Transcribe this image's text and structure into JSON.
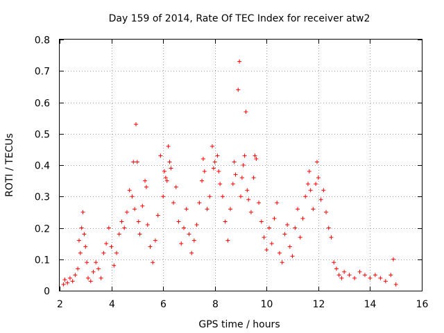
{
  "chart_data": {
    "type": "scatter",
    "title": "Day 159 of 2014, Rate Of TEC Index for receiver atw2",
    "xlabel": "GPS time / hours",
    "ylabel": "ROTI / TECUs",
    "xlim": [
      2,
      16
    ],
    "ylim": [
      0,
      0.8
    ],
    "xticks": [
      "2",
      "4",
      "6",
      "8",
      "10",
      "12",
      "14",
      "16"
    ],
    "yticks": [
      "0",
      "0.1",
      "0.2",
      "0.3",
      "0.4",
      "0.5",
      "0.6",
      "0.7",
      "0.8"
    ],
    "grid": true,
    "marker": "+",
    "color": "#ff0000",
    "series": [
      {
        "name": "ROTI",
        "points": [
          [
            2.15,
            0.02
          ],
          [
            2.2,
            0.035
          ],
          [
            2.3,
            0.025
          ],
          [
            2.4,
            0.04
          ],
          [
            2.5,
            0.03
          ],
          [
            2.6,
            0.05
          ],
          [
            2.7,
            0.07
          ],
          [
            2.75,
            0.16
          ],
          [
            2.8,
            0.12
          ],
          [
            2.85,
            0.2
          ],
          [
            2.9,
            0.25
          ],
          [
            2.95,
            0.18
          ],
          [
            3.0,
            0.14
          ],
          [
            3.05,
            0.09
          ],
          [
            3.1,
            0.04
          ],
          [
            3.2,
            0.03
          ],
          [
            3.3,
            0.06
          ],
          [
            3.4,
            0.09
          ],
          [
            3.5,
            0.07
          ],
          [
            3.6,
            0.04
          ],
          [
            3.7,
            0.12
          ],
          [
            3.8,
            0.15
          ],
          [
            3.9,
            0.2
          ],
          [
            4.0,
            0.14
          ],
          [
            4.1,
            0.08
          ],
          [
            4.2,
            0.12
          ],
          [
            4.3,
            0.18
          ],
          [
            4.4,
            0.22
          ],
          [
            4.5,
            0.2
          ],
          [
            4.6,
            0.25
          ],
          [
            4.7,
            0.32
          ],
          [
            4.8,
            0.3
          ],
          [
            4.85,
            0.41
          ],
          [
            4.9,
            0.26
          ],
          [
            4.95,
            0.53
          ],
          [
            5.0,
            0.41
          ],
          [
            5.05,
            0.22
          ],
          [
            5.1,
            0.18
          ],
          [
            5.2,
            0.27
          ],
          [
            5.3,
            0.35
          ],
          [
            5.35,
            0.33
          ],
          [
            5.4,
            0.21
          ],
          [
            5.5,
            0.14
          ],
          [
            5.6,
            0.09
          ],
          [
            5.7,
            0.16
          ],
          [
            5.8,
            0.24
          ],
          [
            5.9,
            0.43
          ],
          [
            6.0,
            0.3
          ],
          [
            6.05,
            0.38
          ],
          [
            6.1,
            0.36
          ],
          [
            6.15,
            0.35
          ],
          [
            6.2,
            0.46
          ],
          [
            6.25,
            0.41
          ],
          [
            6.3,
            0.39
          ],
          [
            6.4,
            0.28
          ],
          [
            6.5,
            0.33
          ],
          [
            6.6,
            0.22
          ],
          [
            6.7,
            0.15
          ],
          [
            6.8,
            0.2
          ],
          [
            6.9,
            0.26
          ],
          [
            7.0,
            0.18
          ],
          [
            7.1,
            0.12
          ],
          [
            7.2,
            0.16
          ],
          [
            7.3,
            0.21
          ],
          [
            7.4,
            0.28
          ],
          [
            7.5,
            0.35
          ],
          [
            7.55,
            0.42
          ],
          [
            7.6,
            0.38
          ],
          [
            7.7,
            0.26
          ],
          [
            7.8,
            0.3
          ],
          [
            7.9,
            0.46
          ],
          [
            7.95,
            0.39
          ],
          [
            8.0,
            0.41
          ],
          [
            8.1,
            0.43
          ],
          [
            8.15,
            0.38
          ],
          [
            8.2,
            0.34
          ],
          [
            8.3,
            0.3
          ],
          [
            8.4,
            0.22
          ],
          [
            8.5,
            0.16
          ],
          [
            8.6,
            0.26
          ],
          [
            8.7,
            0.34
          ],
          [
            8.75,
            0.41
          ],
          [
            8.8,
            0.37
          ],
          [
            8.9,
            0.64
          ],
          [
            8.95,
            0.73
          ],
          [
            9.0,
            0.3
          ],
          [
            9.05,
            0.36
          ],
          [
            9.1,
            0.4
          ],
          [
            9.15,
            0.43
          ],
          [
            9.2,
            0.57
          ],
          [
            9.25,
            0.32
          ],
          [
            9.3,
            0.29
          ],
          [
            9.4,
            0.25
          ],
          [
            9.5,
            0.36
          ],
          [
            9.55,
            0.43
          ],
          [
            9.6,
            0.42
          ],
          [
            9.7,
            0.28
          ],
          [
            9.8,
            0.22
          ],
          [
            9.9,
            0.17
          ],
          [
            10.0,
            0.13
          ],
          [
            10.1,
            0.2
          ],
          [
            10.2,
            0.15
          ],
          [
            10.3,
            0.23
          ],
          [
            10.4,
            0.28
          ],
          [
            10.5,
            0.12
          ],
          [
            10.6,
            0.09
          ],
          [
            10.7,
            0.18
          ],
          [
            10.8,
            0.21
          ],
          [
            10.9,
            0.14
          ],
          [
            11.0,
            0.11
          ],
          [
            11.1,
            0.2
          ],
          [
            11.2,
            0.26
          ],
          [
            11.3,
            0.17
          ],
          [
            11.4,
            0.23
          ],
          [
            11.5,
            0.3
          ],
          [
            11.6,
            0.34
          ],
          [
            11.65,
            0.38
          ],
          [
            11.7,
            0.32
          ],
          [
            11.8,
            0.26
          ],
          [
            11.9,
            0.34
          ],
          [
            11.95,
            0.41
          ],
          [
            12.0,
            0.36
          ],
          [
            12.1,
            0.29
          ],
          [
            12.2,
            0.32
          ],
          [
            12.3,
            0.25
          ],
          [
            12.4,
            0.2
          ],
          [
            12.5,
            0.17
          ],
          [
            12.6,
            0.09
          ],
          [
            12.7,
            0.07
          ],
          [
            12.8,
            0.05
          ],
          [
            12.9,
            0.04
          ],
          [
            13.0,
            0.06
          ],
          [
            13.2,
            0.05
          ],
          [
            13.4,
            0.04
          ],
          [
            13.6,
            0.06
          ],
          [
            13.8,
            0.05
          ],
          [
            14.0,
            0.04
          ],
          [
            14.2,
            0.05
          ],
          [
            14.4,
            0.04
          ],
          [
            14.6,
            0.03
          ],
          [
            14.8,
            0.05
          ],
          [
            14.9,
            0.1
          ],
          [
            15.0,
            0.02
          ]
        ]
      }
    ]
  }
}
